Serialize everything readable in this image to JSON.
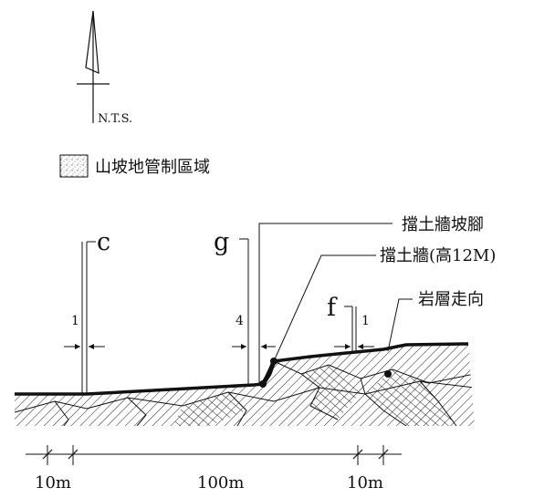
{
  "north_arrow": {
    "scale_note": "N.T.S."
  },
  "legend": {
    "item_label": "山坡地管制區域"
  },
  "callouts": {
    "wall_toe": "擋土牆坡腳",
    "wall": "擋土牆(高12M)",
    "rock_strike": "岩層走向"
  },
  "sections": [
    {
      "letter": "c",
      "offset": "1"
    },
    {
      "letter": "g",
      "offset": "4"
    },
    {
      "letter": "f",
      "offset": "1"
    }
  ],
  "dimensions": [
    "10m",
    "100m",
    "10m"
  ],
  "colors": {
    "ink": "#111111",
    "hatch": "#222222",
    "paper": "#ffffff"
  }
}
